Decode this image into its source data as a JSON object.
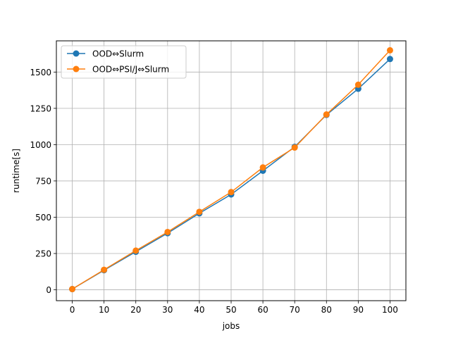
{
  "chart_data": {
    "type": "line",
    "xlabel": "jobs",
    "ylabel": "runtime[s]",
    "x": [
      0,
      10,
      20,
      30,
      40,
      50,
      60,
      70,
      80,
      90,
      100
    ],
    "xticks": [
      "0",
      "10",
      "20",
      "30",
      "40",
      "50",
      "60",
      "70",
      "80",
      "90",
      "100"
    ],
    "yticks": [
      {
        "value": 0,
        "label": "0"
      },
      {
        "value": 250,
        "label": "250"
      },
      {
        "value": 500,
        "label": "500"
      },
      {
        "value": 750,
        "label": "750"
      },
      {
        "value": 1000,
        "label": "1000"
      },
      {
        "value": 1250,
        "label": "1250"
      },
      {
        "value": 1500,
        "label": "1500"
      }
    ],
    "xlim": [
      -5,
      105
    ],
    "ylim": [
      -75,
      1715
    ],
    "grid": true,
    "legend_position": "top-left",
    "series": [
      {
        "name": "OOD⇔Slurm",
        "color": "#1f77b4",
        "values": [
          5,
          135,
          262,
          390,
          527,
          657,
          820,
          985,
          1205,
          1385,
          1590
        ]
      },
      {
        "name": "OOD⇔PSI/J⇔Slurm",
        "color": "#ff7f0e",
        "values": [
          5,
          138,
          270,
          398,
          537,
          673,
          843,
          980,
          1208,
          1413,
          1650
        ]
      }
    ]
  }
}
